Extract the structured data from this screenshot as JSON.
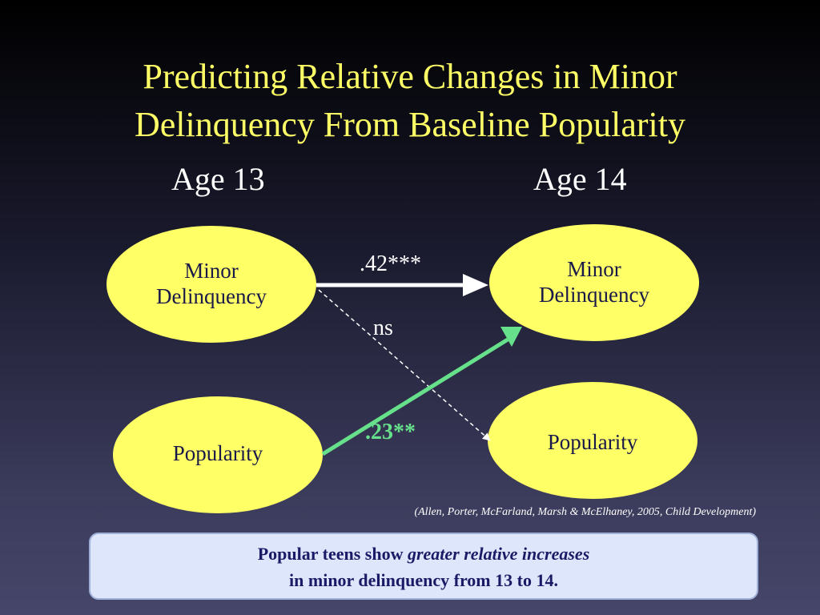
{
  "slide": {
    "title_line1": "Predicting Relative Changes in Minor",
    "title_line2": "Delinquency From Baseline Popularity",
    "col_left": "Age 13",
    "col_right": "Age 14"
  },
  "nodes": {
    "md13": {
      "line1": "Minor",
      "line2": "Delinquency"
    },
    "pop13": {
      "label": "Popularity"
    },
    "md14": {
      "line1": "Minor",
      "line2": "Delinquency"
    },
    "pop14": {
      "label": "Popularity"
    }
  },
  "edges": {
    "md_stability": ".42***",
    "md_to_pop": "ns",
    "pop_to_md": ".23**"
  },
  "colors": {
    "title": "#ffff66",
    "node_fill": "#ffff66",
    "node_text": "#1a1a4a",
    "highlight_arrow": "#66e08a",
    "box_fill": "#dde6fb"
  },
  "citation": "(Allen, Porter, McFarland, Marsh & McElhaney, 2005, Child Development)",
  "summary": {
    "pre": "Popular teens show ",
    "emph": "greater relative increases",
    "line2": "in minor delinquency  from 13 to 14."
  }
}
